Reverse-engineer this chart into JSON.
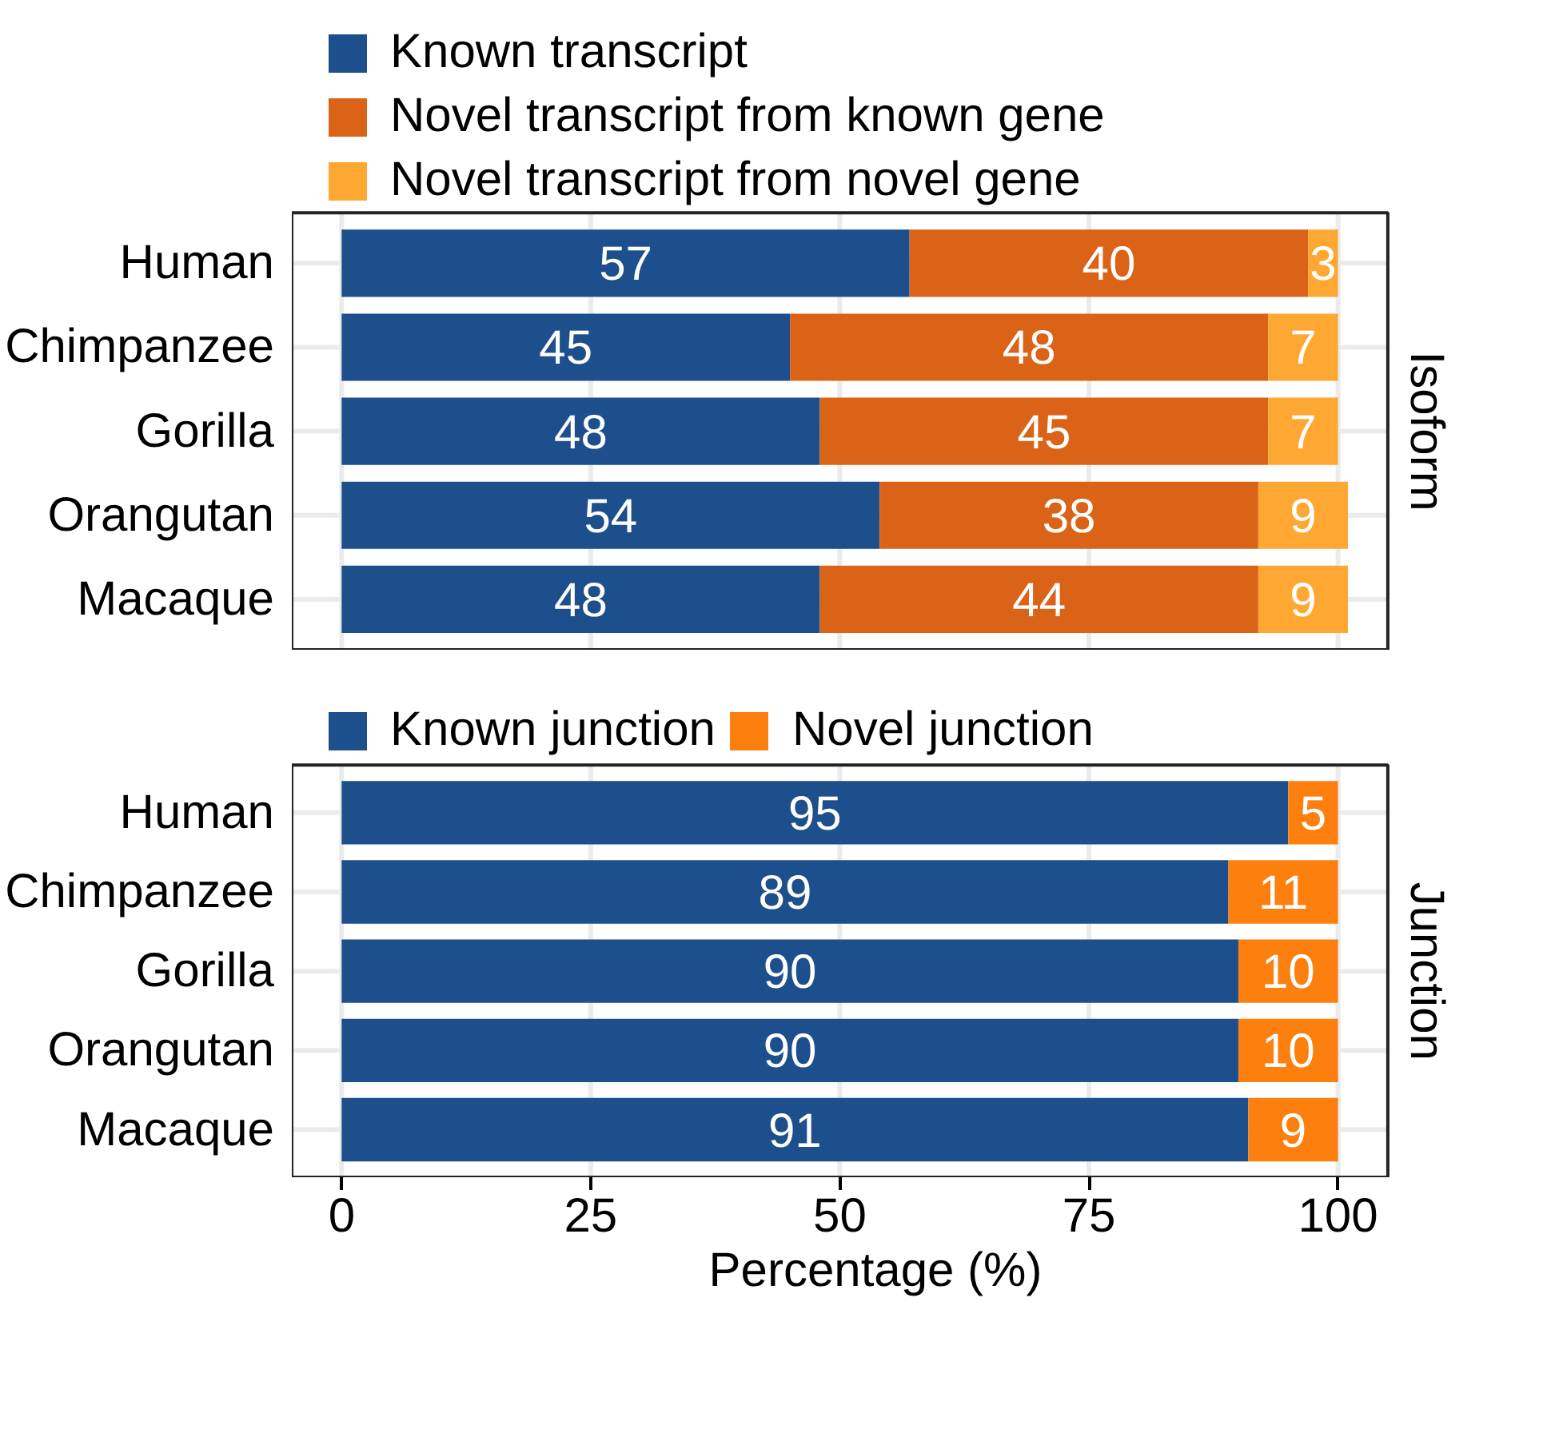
{
  "chart_data": [
    {
      "type": "bar",
      "orientation": "horizontal",
      "stacked": true,
      "categories": [
        "Human",
        "Chimpanzee",
        "Gorilla",
        "Orangutan",
        "Macaque"
      ],
      "series": [
        {
          "name": "Known transcript",
          "color": "#1c4f8c",
          "values": [
            57,
            45,
            48,
            54,
            48
          ]
        },
        {
          "name": "Novel transcript from known gene",
          "color": "#da6318",
          "values": [
            40,
            48,
            45,
            38,
            44
          ]
        },
        {
          "name": "Novel transcript from novel gene",
          "color": "#fea733",
          "values": [
            3,
            7,
            7,
            9,
            9
          ]
        }
      ],
      "xlim": [
        -5,
        105
      ],
      "xticks": [
        0,
        25,
        50,
        75,
        100
      ],
      "tick_labels": "y",
      "grid": true,
      "legend": "top",
      "data_labels": true,
      "annotations": [
        "Isoform"
      ]
    },
    {
      "type": "bar",
      "orientation": "horizontal",
      "stacked": true,
      "categories": [
        "Human",
        "Chimpanzee",
        "Gorilla",
        "Orangutan",
        "Macaque"
      ],
      "series": [
        {
          "name": "Known junction",
          "color": "#1c4f8c",
          "values": [
            95,
            89,
            90,
            90,
            91
          ]
        },
        {
          "name": "Novel junction",
          "color": "#fd7f0e",
          "values": [
            5,
            11,
            10,
            10,
            9
          ]
        }
      ],
      "xlim": [
        -5,
        105
      ],
      "xticks": [
        0,
        25,
        50,
        75,
        100
      ],
      "xlabel": "Percentage (%)",
      "grid": true,
      "legend": "top",
      "data_labels": true,
      "annotations": [
        "Junction"
      ]
    }
  ]
}
